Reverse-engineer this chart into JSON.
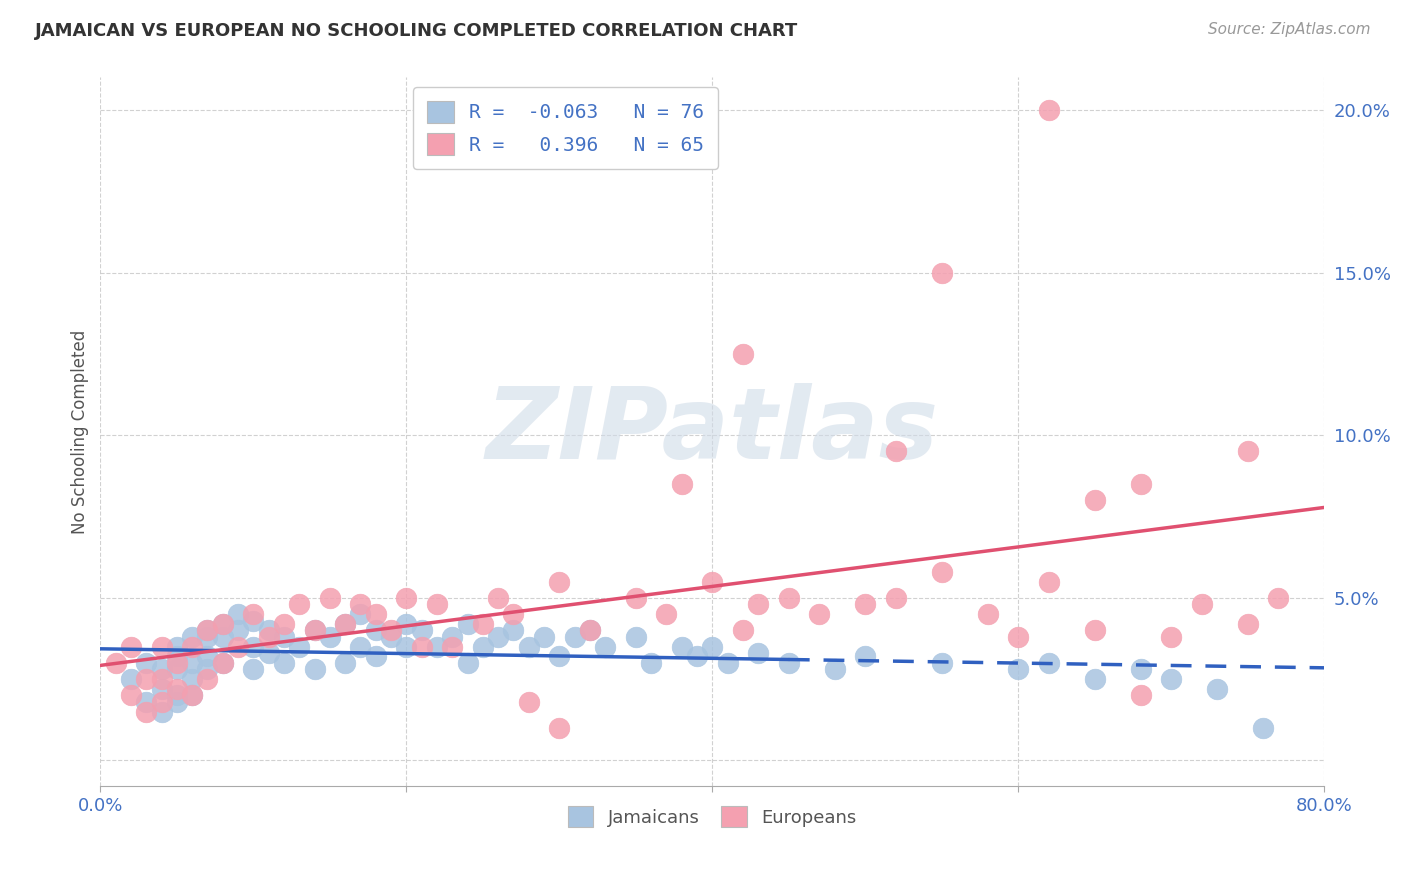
{
  "title": "JAMAICAN VS EUROPEAN NO SCHOOLING COMPLETED CORRELATION CHART",
  "source": "Source: ZipAtlas.com",
  "ylabel": "No Schooling Completed",
  "xlim": [
    0.0,
    0.8
  ],
  "ylim": [
    -0.008,
    0.21
  ],
  "yticks": [
    0.0,
    0.05,
    0.1,
    0.15,
    0.2
  ],
  "ytick_labels": [
    "",
    "5.0%",
    "10.0%",
    "15.0%",
    "20.0%"
  ],
  "xticks": [
    0.0,
    0.2,
    0.4,
    0.6,
    0.8
  ],
  "xtick_labels": [
    "0.0%",
    "",
    "",
    "",
    "80.0%"
  ],
  "grid_color": "#cccccc",
  "background_color": "#ffffff",
  "jamaican_color": "#a8c4e0",
  "european_color": "#f4a0b0",
  "jamaican_line_color": "#3060c0",
  "european_line_color": "#e05070",
  "watermark_text": "ZIPatlas",
  "watermark_color": "#d0dce8",
  "R_jamaican": -0.063,
  "N_jamaican": 76,
  "R_european": 0.396,
  "N_european": 65,
  "jamaican_x": [
    0.02,
    0.03,
    0.03,
    0.04,
    0.04,
    0.04,
    0.05,
    0.05,
    0.05,
    0.05,
    0.05,
    0.06,
    0.06,
    0.06,
    0.06,
    0.07,
    0.07,
    0.07,
    0.07,
    0.08,
    0.08,
    0.08,
    0.09,
    0.09,
    0.1,
    0.1,
    0.1,
    0.11,
    0.11,
    0.12,
    0.12,
    0.13,
    0.14,
    0.14,
    0.15,
    0.16,
    0.16,
    0.17,
    0.17,
    0.18,
    0.18,
    0.19,
    0.2,
    0.2,
    0.21,
    0.22,
    0.23,
    0.24,
    0.24,
    0.25,
    0.26,
    0.27,
    0.28,
    0.29,
    0.3,
    0.31,
    0.32,
    0.33,
    0.35,
    0.36,
    0.38,
    0.39,
    0.4,
    0.41,
    0.43,
    0.45,
    0.48,
    0.5,
    0.55,
    0.6,
    0.62,
    0.65,
    0.68,
    0.7,
    0.73,
    0.76
  ],
  "jamaican_y": [
    0.025,
    0.03,
    0.018,
    0.022,
    0.028,
    0.015,
    0.032,
    0.02,
    0.028,
    0.035,
    0.018,
    0.038,
    0.025,
    0.02,
    0.03,
    0.04,
    0.038,
    0.028,
    0.032,
    0.042,
    0.038,
    0.03,
    0.045,
    0.04,
    0.043,
    0.035,
    0.028,
    0.04,
    0.033,
    0.038,
    0.03,
    0.035,
    0.04,
    0.028,
    0.038,
    0.042,
    0.03,
    0.035,
    0.045,
    0.04,
    0.032,
    0.038,
    0.035,
    0.042,
    0.04,
    0.035,
    0.038,
    0.042,
    0.03,
    0.035,
    0.038,
    0.04,
    0.035,
    0.038,
    0.032,
    0.038,
    0.04,
    0.035,
    0.038,
    0.03,
    0.035,
    0.032,
    0.035,
    0.03,
    0.033,
    0.03,
    0.028,
    0.032,
    0.03,
    0.028,
    0.03,
    0.025,
    0.028,
    0.025,
    0.022,
    0.01
  ],
  "european_x": [
    0.01,
    0.02,
    0.02,
    0.03,
    0.03,
    0.04,
    0.04,
    0.04,
    0.05,
    0.05,
    0.06,
    0.06,
    0.07,
    0.07,
    0.08,
    0.08,
    0.09,
    0.1,
    0.11,
    0.12,
    0.13,
    0.14,
    0.15,
    0.16,
    0.17,
    0.18,
    0.19,
    0.2,
    0.21,
    0.22,
    0.23,
    0.25,
    0.26,
    0.27,
    0.28,
    0.3,
    0.32,
    0.35,
    0.37,
    0.4,
    0.42,
    0.43,
    0.45,
    0.47,
    0.5,
    0.52,
    0.55,
    0.58,
    0.6,
    0.62,
    0.65,
    0.68,
    0.7,
    0.72,
    0.75,
    0.77,
    0.52,
    0.38,
    0.62,
    0.68,
    0.3,
    0.42,
    0.55,
    0.65,
    0.75
  ],
  "european_y": [
    0.03,
    0.035,
    0.02,
    0.025,
    0.015,
    0.035,
    0.025,
    0.018,
    0.03,
    0.022,
    0.035,
    0.02,
    0.04,
    0.025,
    0.042,
    0.03,
    0.035,
    0.045,
    0.038,
    0.042,
    0.048,
    0.04,
    0.05,
    0.042,
    0.048,
    0.045,
    0.04,
    0.05,
    0.035,
    0.048,
    0.035,
    0.042,
    0.05,
    0.045,
    0.018,
    0.055,
    0.04,
    0.05,
    0.045,
    0.055,
    0.04,
    0.048,
    0.05,
    0.045,
    0.048,
    0.05,
    0.058,
    0.045,
    0.038,
    0.055,
    0.04,
    0.02,
    0.038,
    0.048,
    0.042,
    0.05,
    0.095,
    0.085,
    0.2,
    0.085,
    0.01,
    0.125,
    0.15,
    0.08,
    0.095
  ]
}
